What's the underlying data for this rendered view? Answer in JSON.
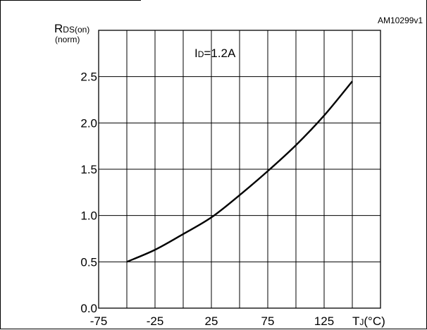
{
  "figure_code": "AM10299v1",
  "chart_data": {
    "type": "line",
    "ylabel_main": "R",
    "ylabel_sub": "DS(on)",
    "ylabel_unit": "(norm)",
    "xlabel_main": "T",
    "xlabel_sub": "J",
    "xlabel_unit": "(°C)",
    "annotation_main": "I",
    "annotation_sub": "D",
    "annotation_value": "=1.2A",
    "x_ticks": [
      "-75",
      "-25",
      "25",
      "75",
      "125"
    ],
    "y_ticks": [
      "0.0",
      "0.5",
      "1.0",
      "1.5",
      "2.0",
      "2.5"
    ],
    "xlim": [
      -75,
      175
    ],
    "ylim": [
      0.0,
      3.0
    ],
    "grid": true,
    "series": [
      {
        "x": [
          -50,
          -25,
          0,
          25,
          50,
          75,
          100,
          125,
          150
        ],
        "y": [
          0.5,
          0.63,
          0.8,
          0.98,
          1.22,
          1.48,
          1.76,
          2.08,
          2.45
        ]
      }
    ]
  }
}
